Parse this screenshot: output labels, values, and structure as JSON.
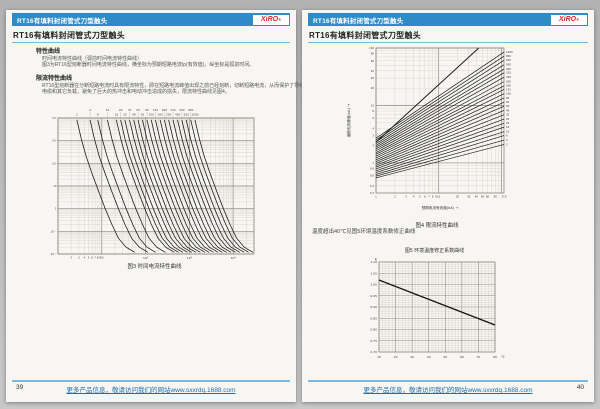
{
  "theme": {
    "window_bg": "#bcbcbc",
    "page_bg": "#f7f6f2",
    "header_bar_blue": "#2e8bc6",
    "accent_line_blue": "#7db8dd",
    "footer_link_blue": "#1c6fad",
    "logo_red": "#d42a20",
    "curve_color": "#1c1c1c",
    "grid_minor": "#cac4b8",
    "grid_major": "#8d877c"
  },
  "header": {
    "bar_title": "RT16有填料封闭管式刀型触头",
    "logo_text": "XiRO",
    "logo_reg": "®",
    "page_title": "RT16有填料封闭管式刀型触头"
  },
  "left_page": {
    "page_number": "39",
    "sections": [
      {
        "heading": "特性曲线",
        "lines": [
          "时间电流特性曲线（弧前时间电流特性曲线）",
          "图3为RT16型熔断器时间电流特性曲线，横坐标为预期短路电流Ip(有效值)，纵坐标是弧前时间。"
        ]
      },
      {
        "heading": "限流特性曲线",
        "lines": [
          "RT16型熔断器在分断短路电流时具有限流特性，即在短路电流峰值出现之前已经熔断，切断短路电流，从而保护了导线、",
          "电缆和其它负载，避免了巨大的热冲击和电动冲击造成的损失，限流特性曲线见图4。"
        ]
      }
    ],
    "fig3_caption": "图3 时间电流特性曲线"
  },
  "right_page": {
    "page_number": "40",
    "fig4_caption": "图4 限流特性曲线",
    "temperature_note": "温度超出40℃见图5环境温度系数修正曲线",
    "fig5_title": "图5 环境温度修正系数曲线"
  },
  "footer": {
    "text": "更多产品信息，敬请访问我们的网站www.sxxrdq.1688.com"
  },
  "chart_data": [
    {
      "id": "fig3",
      "type": "line",
      "scale": "log-log",
      "title": "图3 时间电流特性曲线",
      "xlim": [
        1,
        30000
      ],
      "ylim": [
        0.01,
        10000
      ],
      "grid": "on",
      "x_minor_labels": [
        "2",
        "3",
        "4",
        "5",
        "6",
        "7",
        "8",
        "9",
        "10"
      ],
      "x_decade_labels": [
        {
          "v": 100,
          "label": "10²"
        },
        {
          "v": 1000,
          "label": "10³"
        },
        {
          "v": 10000,
          "label": "10⁴"
        }
      ],
      "y_decade_labels": [
        {
          "v": 10000,
          "label": "10⁴"
        },
        {
          "v": 1000,
          "label": "10³"
        },
        {
          "v": 100,
          "label": "10²"
        },
        {
          "v": 10,
          "label": "10"
        },
        {
          "v": 1,
          "label": "1"
        },
        {
          "v": 0.1,
          "label": "10⁻¹"
        },
        {
          "v": 0.01,
          "label": "10⁻²"
        }
      ],
      "ratings_A": [
        2,
        4,
        6,
        10,
        16,
        20,
        25,
        32,
        40,
        50,
        63,
        80,
        100,
        125,
        160,
        200,
        250,
        315,
        400,
        500,
        630,
        800,
        1000
      ],
      "curve_multiples": [
        1.35,
        1.7,
        2.2,
        3,
        4.2,
        6,
        8.5,
        12,
        18,
        28
      ],
      "curve_times_s": [
        8000,
        1200,
        200,
        35,
        6,
        1,
        0.2,
        0.05,
        0.02,
        0.012
      ]
    },
    {
      "id": "fig4",
      "type": "line",
      "scale": "log-log",
      "title": "图4 限流特性曲线",
      "xlabel": "预期电流有效值(kA) →",
      "ylabel": "截断电流峰值(kA) →",
      "xlim": [
        1,
        110
      ],
      "ylim": [
        0.3,
        100
      ],
      "grid": "on",
      "x_ticks": [
        1,
        2,
        3,
        4,
        5,
        6,
        7,
        8,
        9,
        10,
        20,
        30,
        40,
        50,
        60,
        80,
        110
      ],
      "y_ticks": [
        100,
        80,
        60,
        40,
        30,
        20,
        10,
        8,
        6,
        4,
        3,
        2,
        1,
        0.8,
        0.6,
        0.4,
        0.3
      ],
      "diagonal": [
        [
          1,
          2.3
        ],
        [
          43.5,
          100
        ]
      ],
      "series": [
        {
          "name": "1000",
          "y1": 2.7,
          "y2": 85
        },
        {
          "name": "800",
          "y1": 2.51,
          "y2": 72
        },
        {
          "name": "630",
          "y1": 2.34,
          "y2": 61
        },
        {
          "name": "500",
          "y1": 2.17,
          "y2": 51
        },
        {
          "name": "400",
          "y1": 2.02,
          "y2": 43
        },
        {
          "name": "315",
          "y1": 1.88,
          "y2": 37
        },
        {
          "name": "250",
          "y1": 1.75,
          "y2": 31
        },
        {
          "name": "200",
          "y1": 1.63,
          "y2": 26
        },
        {
          "name": "160",
          "y1": 1.51,
          "y2": 22
        },
        {
          "name": "125",
          "y1": 1.41,
          "y2": 19
        },
        {
          "name": "100",
          "y1": 1.31,
          "y2": 16
        },
        {
          "name": "80",
          "y1": 1.22,
          "y2": 13.5
        },
        {
          "name": "63",
          "y1": 1.13,
          "y2": 11.4
        },
        {
          "name": "50",
          "y1": 1.05,
          "y2": 9.7
        },
        {
          "name": "40",
          "y1": 0.98,
          "y2": 8.2
        },
        {
          "name": "32",
          "y1": 0.91,
          "y2": 6.9
        },
        {
          "name": "25",
          "y1": 0.85,
          "y2": 5.8
        },
        {
          "name": "20",
          "y1": 0.79,
          "y2": 4.9
        },
        {
          "name": "16",
          "y1": 0.73,
          "y2": 4.2
        },
        {
          "name": "10",
          "y1": 0.68,
          "y2": 3.5
        },
        {
          "name": "6",
          "y1": 0.63,
          "y2": 3.0
        },
        {
          "name": "4",
          "y1": 0.59,
          "y2": 2.5
        },
        {
          "name": "2",
          "y1": 0.55,
          "y2": 2.1
        }
      ]
    },
    {
      "id": "fig5",
      "type": "line",
      "scale": "linear",
      "title": "图5 环境温度修正系数曲线",
      "ylabel": "K",
      "x_unit": "℃",
      "xlim": [
        10,
        80
      ],
      "ylim": [
        0.7,
        1.1
      ],
      "grid": "on",
      "x_ticks": [
        10,
        20,
        30,
        40,
        50,
        60,
        70,
        80
      ],
      "y_ticks": [
        "1.10",
        "1.05",
        "1.00",
        "0.95",
        "0.90",
        "0.85",
        "0.80",
        "0.75",
        "0.70"
      ],
      "points": [
        [
          10,
          1.02
        ],
        [
          80,
          0.82
        ]
      ]
    }
  ]
}
